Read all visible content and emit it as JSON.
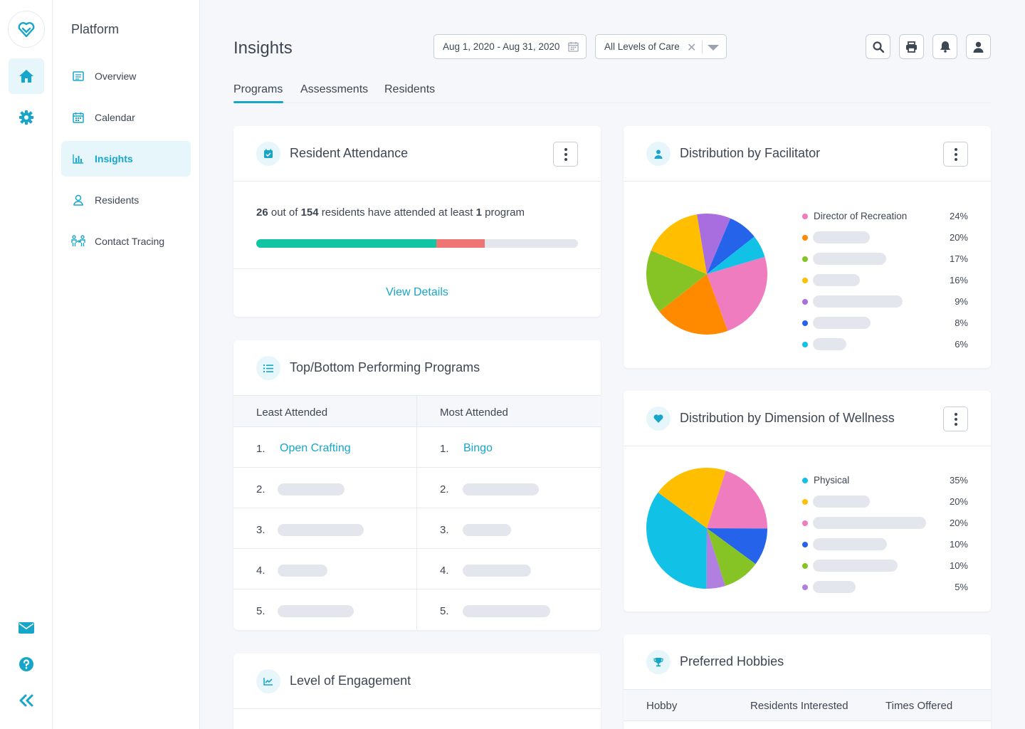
{
  "nav": {
    "title": "Platform",
    "items": [
      {
        "label": "Overview"
      },
      {
        "label": "Calendar"
      },
      {
        "label": "Insights"
      },
      {
        "label": "Residents"
      },
      {
        "label": "Contact Tracing"
      }
    ]
  },
  "header": {
    "title": "Insights",
    "date_range": "Aug 1, 2020 - Aug 31, 2020",
    "care_filter": "All Levels of Care"
  },
  "tabs": [
    {
      "label": "Programs"
    },
    {
      "label": "Assessments"
    },
    {
      "label": "Residents"
    }
  ],
  "attendance": {
    "title": "Resident Attendance",
    "attended": "26",
    "text1": "out of",
    "total": "154",
    "text2": "residents have attended at least",
    "min": "1",
    "text3": "program",
    "bar_green_fraction": 0.56,
    "bar_red_fraction": 0.15,
    "link": "View Details"
  },
  "top_bottom": {
    "title": "Top/Bottom Performing Programs",
    "col_least": "Least Attended",
    "col_most": "Most Attended",
    "least": [
      {
        "n": "1.",
        "name": "Open Crafting"
      },
      {
        "n": "2."
      },
      {
        "n": "3."
      },
      {
        "n": "4."
      },
      {
        "n": "5."
      }
    ],
    "most": [
      {
        "n": "1.",
        "name": "Bingo"
      },
      {
        "n": "2."
      },
      {
        "n": "3."
      },
      {
        "n": "4."
      },
      {
        "n": "5."
      }
    ]
  },
  "engagement": {
    "title": "Level of Engagement"
  },
  "facilitator": {
    "title": "Distribution by Facilitator",
    "legend_first": "Director of Recreation"
  },
  "wellness": {
    "title": "Distribution by Dimension of Wellness",
    "legend_first": "Physical"
  },
  "hobbies": {
    "title": "Preferred Hobbies",
    "col_hobby": "Hobby",
    "col_interested": "Residents Interested",
    "col_offered": "Times Offered"
  },
  "chart_data": [
    {
      "type": "pie",
      "series": [
        {
          "name": "Director of Recreation",
          "value": 24,
          "color": "#f07cc0",
          "label": "24%"
        },
        {
          "value": 20,
          "color": "#ff8a00",
          "label": "20%"
        },
        {
          "value": 17,
          "color": "#86c426",
          "label": "17%"
        },
        {
          "value": 16,
          "color": "#ffbf00",
          "label": "16%"
        },
        {
          "value": 9,
          "color": "#a86ee0",
          "label": "9%"
        },
        {
          "value": 8,
          "color": "#2563eb",
          "label": "8%"
        },
        {
          "value": 6,
          "color": "#12c1e6",
          "label": "6%"
        }
      ]
    },
    {
      "type": "pie",
      "series": [
        {
          "name": "Physical",
          "value": 35,
          "color": "#12c1e6",
          "label": "35%"
        },
        {
          "value": 20,
          "color": "#ffbf00",
          "label": "20%"
        },
        {
          "value": 20,
          "color": "#f07cc0",
          "label": "20%"
        },
        {
          "value": 10,
          "color": "#2563eb",
          "label": "10%"
        },
        {
          "value": 10,
          "color": "#86c426",
          "label": "10%"
        },
        {
          "value": 5,
          "color": "#b07fe0",
          "label": "5%"
        }
      ]
    }
  ]
}
